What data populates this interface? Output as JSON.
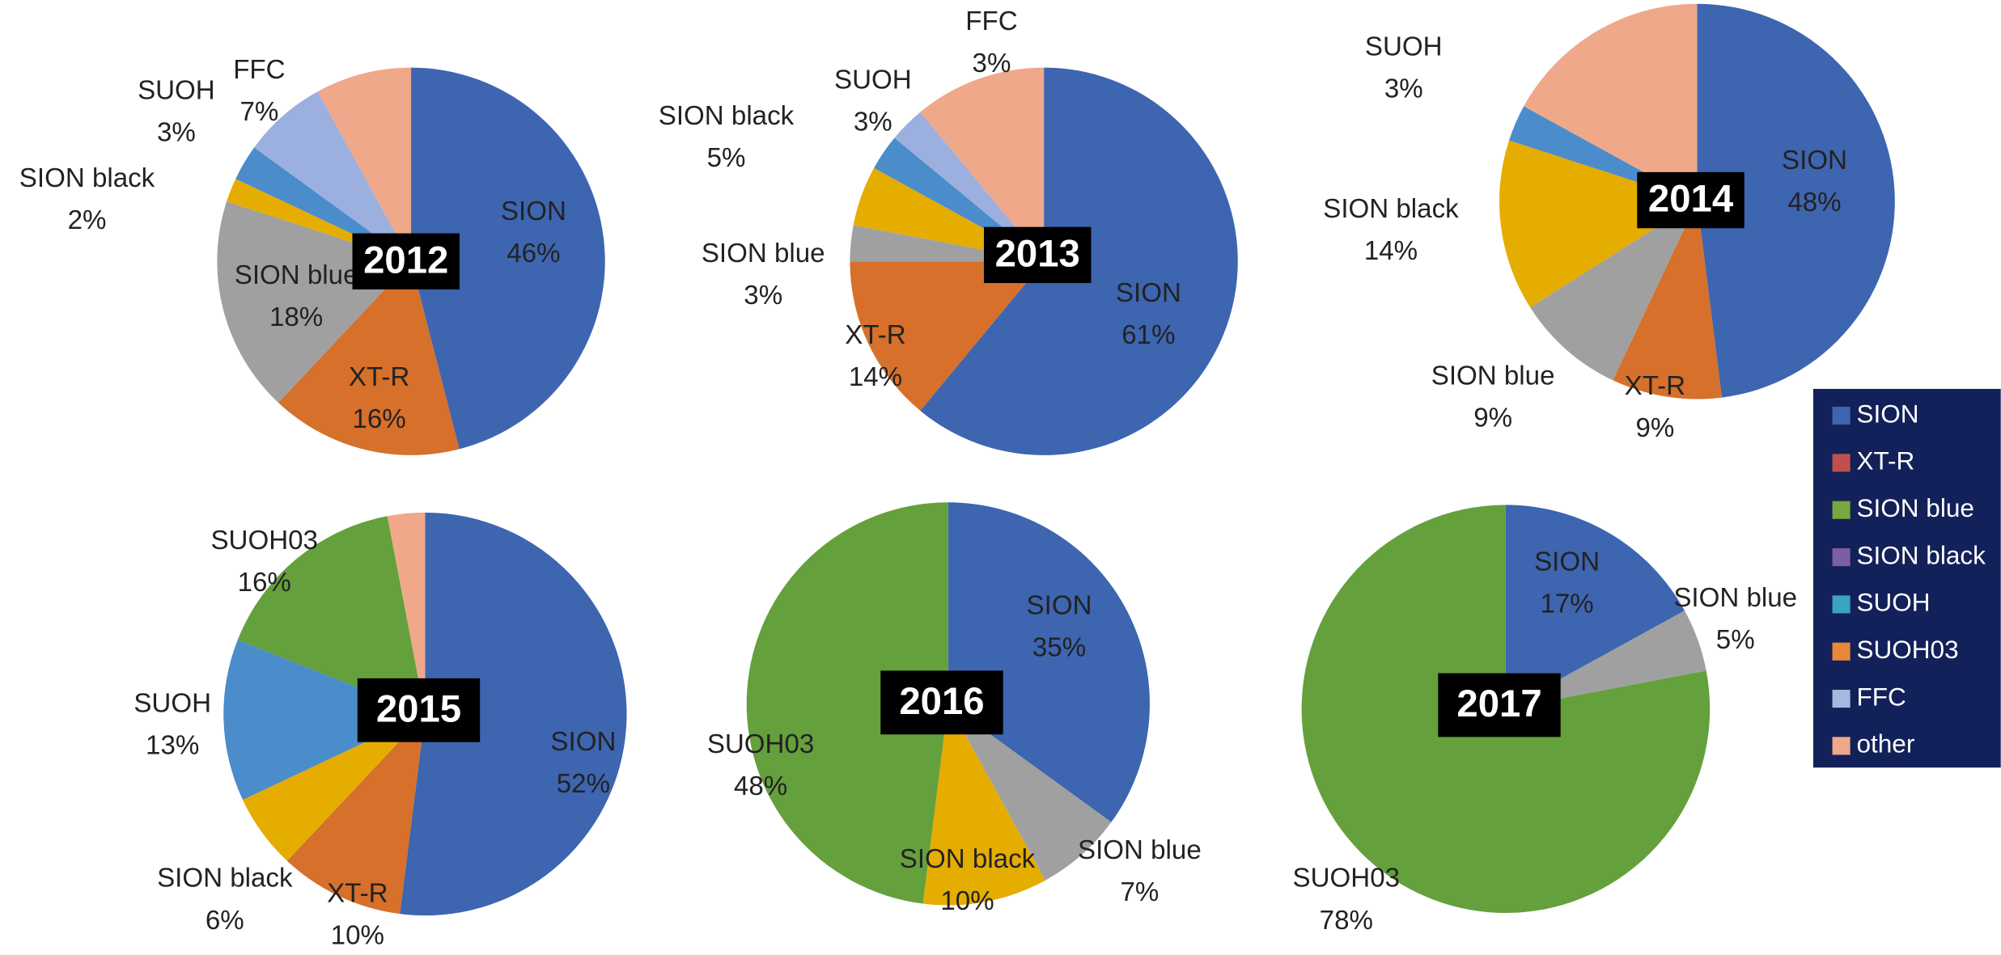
{
  "chart_data": [
    {
      "type": "pie",
      "title": "2012",
      "categories": [
        "SION",
        "XT-R",
        "SION blue",
        "SION black",
        "SUOH",
        "FFC",
        null
      ],
      "values": [
        46,
        16,
        18,
        2,
        3,
        7,
        8
      ],
      "value_labels": [
        "46%",
        "16%",
        "18%",
        "2%",
        "3%",
        "7%",
        null
      ],
      "colors": [
        "#3d65b0",
        "#d6702b",
        "#a0a0a0",
        "#e5ad00",
        "#4b8ccb",
        "#9bb0de",
        "#f0a88a"
      ]
    },
    {
      "type": "pie",
      "title": "2013",
      "categories": [
        "SION",
        "XT-R",
        "SION blue",
        "SION black",
        "SUOH",
        "FFC",
        null
      ],
      "values": [
        61,
        14,
        3,
        5,
        3,
        3,
        11
      ],
      "value_labels": [
        "61%",
        "14%",
        "3%",
        "5%",
        "3%",
        "3%",
        null
      ],
      "colors": [
        "#3d65b0",
        "#d6702b",
        "#a0a0a0",
        "#e5ad00",
        "#4b8ccb",
        "#9bb0de",
        "#f0a88a"
      ]
    },
    {
      "type": "pie",
      "title": "2014",
      "categories": [
        "SION",
        "XT-R",
        "SION blue",
        "SION black",
        "SUOH",
        null
      ],
      "values": [
        48,
        9,
        9,
        14,
        3,
        17
      ],
      "value_labels": [
        "48%",
        "9%",
        "9%",
        "14%",
        "3%",
        null
      ],
      "colors": [
        "#3d65b0",
        "#d6702b",
        "#a0a0a0",
        "#e5ad00",
        "#4b8ccb",
        "#f0a88a"
      ]
    },
    {
      "type": "pie",
      "title": "2015",
      "categories": [
        "SION",
        "XT-R",
        "SION black",
        "SUOH",
        "SUOH03",
        null
      ],
      "values": [
        52,
        10,
        6,
        13,
        16,
        3
      ],
      "value_labels": [
        "52%",
        "10%",
        "6%",
        "13%",
        "16%",
        null
      ],
      "colors": [
        "#3d65b0",
        "#d6702b",
        "#e5ad00",
        "#4b8ccb",
        "#64a03c",
        "#f0a88a"
      ]
    },
    {
      "type": "pie",
      "title": "2016",
      "categories": [
        "SION",
        "SION blue",
        "SION black",
        "SUOH03"
      ],
      "values": [
        35,
        7,
        10,
        48
      ],
      "value_labels": [
        "35%",
        "7%",
        "10%",
        "48%"
      ],
      "colors": [
        "#3d65b0",
        "#a0a0a0",
        "#e5ad00",
        "#64a03c"
      ]
    },
    {
      "type": "pie",
      "title": "2017",
      "categories": [
        "SION",
        "SION blue",
        "SUOH03"
      ],
      "values": [
        17,
        5,
        78
      ],
      "value_labels": [
        "17%",
        "5%",
        "78%"
      ],
      "colors": [
        "#3d65b0",
        "#a0a0a0",
        "#64a03c"
      ]
    }
  ],
  "legend": {
    "entries": [
      {
        "name": "SION",
        "color": "#3d65b0"
      },
      {
        "name": "XT-R",
        "color": "#c0504d"
      },
      {
        "name": "SION blue",
        "color": "#76a83f"
      },
      {
        "name": "SION black",
        "color": "#7c5fa0"
      },
      {
        "name": "SUOH",
        "color": "#3aa3c0"
      },
      {
        "name": "SUOH03",
        "color": "#e8893a"
      },
      {
        "name": "FFC",
        "color": "#a6b8de"
      },
      {
        "name": "other",
        "color": "#f0a88a"
      }
    ]
  }
}
